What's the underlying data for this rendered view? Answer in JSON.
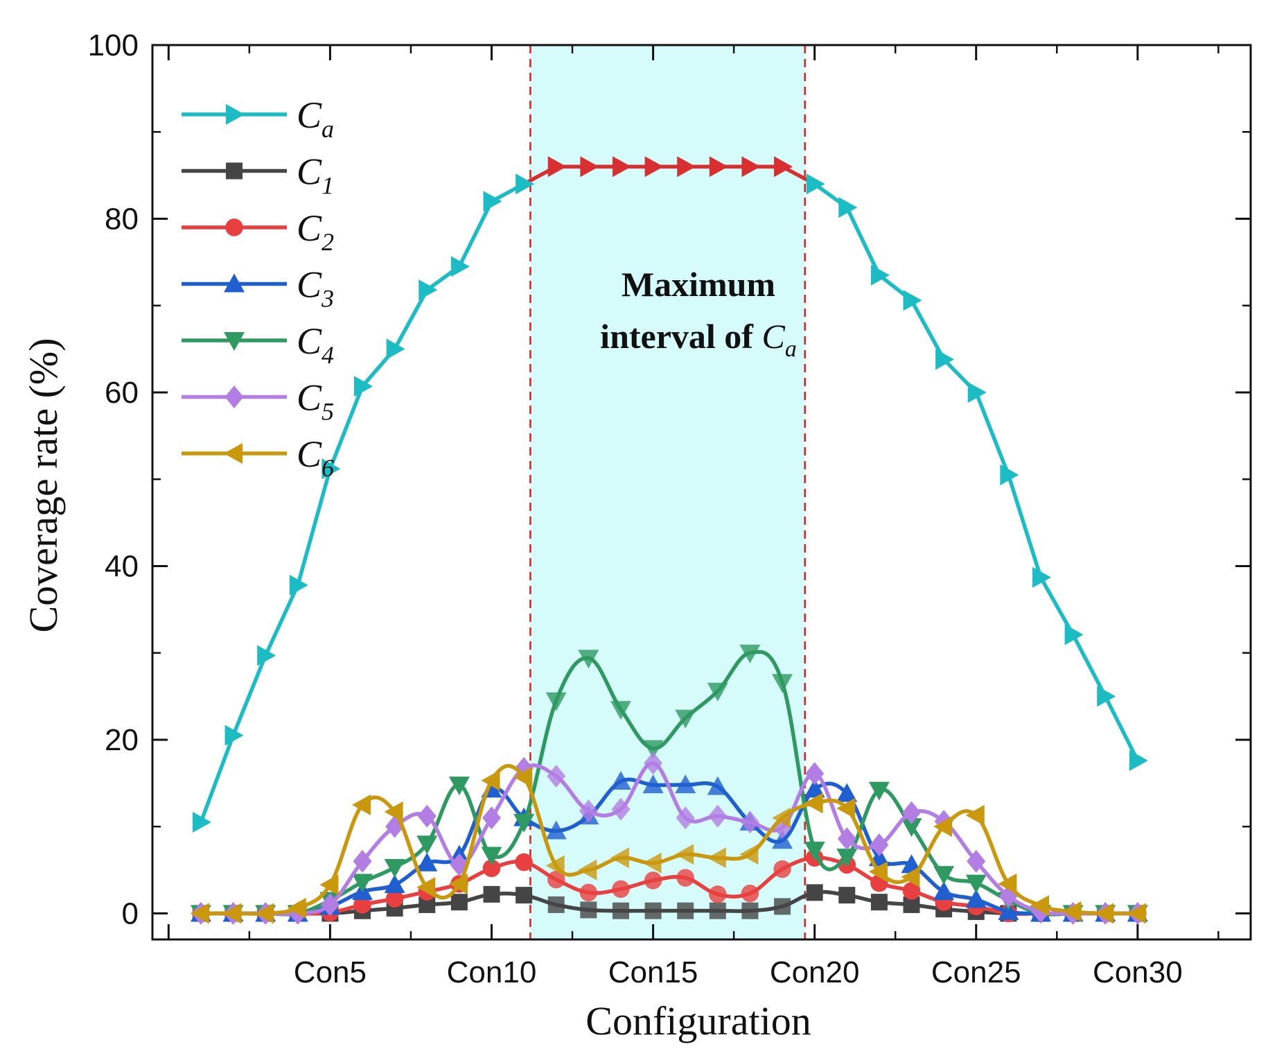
{
  "chart_data": {
    "type": "line",
    "xlabel": "Configuration",
    "ylabel": "Coverage rate (%)",
    "ylim": [
      -3,
      100
    ],
    "yticks": [
      0,
      20,
      40,
      60,
      80,
      100
    ],
    "xlim": [
      -0.5,
      33.5
    ],
    "x_tick_labels": [
      "Con5",
      "Con10",
      "Con15",
      "Con20",
      "Con25",
      "Con30"
    ],
    "x_tick_positions": [
      5,
      10,
      15,
      20,
      25,
      30
    ],
    "x": [
      1,
      2,
      3,
      4,
      5,
      6,
      7,
      8,
      9,
      10,
      11,
      12,
      13,
      14,
      15,
      16,
      17,
      18,
      19,
      20,
      21,
      22,
      23,
      24,
      25,
      26,
      27,
      28,
      29,
      30
    ],
    "highlight": {
      "from": 11.2,
      "to": 19.7,
      "text_line1": "Maximum",
      "text_line2_prefix": "interval of ",
      "text_line2_var": "C",
      "text_line2_sub": "a",
      "fill": "#d6fbfb",
      "line_color": "#d82020",
      "ca_highlight_color": "#d83030"
    },
    "series": [
      {
        "name": "Ca",
        "label": "C",
        "sub": "a",
        "color": "#1cbcc4",
        "marker": "triangle-right",
        "values": [
          10.5,
          20.5,
          29.7,
          37.8,
          51.2,
          60.7,
          65,
          71.8,
          74.5,
          82,
          84,
          86,
          86,
          86,
          86,
          86,
          86,
          86,
          86,
          84,
          81.3,
          73.5,
          70.6,
          63.8,
          60,
          50.5,
          38.7,
          32.1,
          25,
          17.6
        ]
      },
      {
        "name": "C1",
        "label": "C",
        "sub": "1",
        "color": "#454545",
        "marker": "square",
        "values": [
          0,
          0,
          0,
          0,
          0,
          0.3,
          0.6,
          1,
          1.3,
          2.2,
          2.1,
          1,
          0.4,
          0.3,
          0.3,
          0.3,
          0.3,
          0.3,
          0.8,
          2.4,
          2.1,
          1.3,
          1,
          0.5,
          0.2,
          0,
          0,
          0,
          0,
          0
        ]
      },
      {
        "name": "C2",
        "label": "C",
        "sub": "2",
        "color": "#e84040",
        "marker": "circle",
        "values": [
          0,
          0,
          0,
          0,
          0.1,
          1,
          1.7,
          2.5,
          3.4,
          5.2,
          5.9,
          3.9,
          2.4,
          2.8,
          3.8,
          4.1,
          2.2,
          2.3,
          5.1,
          6.4,
          5.6,
          3.5,
          2.6,
          1.3,
          0.8,
          0,
          0,
          0,
          0,
          0
        ]
      },
      {
        "name": "C3",
        "label": "C",
        "sub": "3",
        "color": "#1f5fd0",
        "marker": "triangle-up",
        "values": [
          0,
          0,
          0,
          0,
          0.8,
          2.5,
          3.3,
          5.8,
          6.7,
          14.3,
          11,
          9.5,
          11.2,
          15.2,
          14.8,
          14.8,
          14.6,
          10.5,
          8.4,
          14.3,
          13.8,
          6.4,
          5.6,
          2.5,
          1.6,
          0.2,
          0,
          0,
          0,
          0
        ]
      },
      {
        "name": "C4",
        "label": "C",
        "sub": "4",
        "color": "#2e9a62",
        "marker": "triangle-down",
        "values": [
          0,
          0,
          0,
          0,
          1.5,
          3.6,
          5.3,
          8,
          14.8,
          6.7,
          10.5,
          24.5,
          29.4,
          23.5,
          19,
          22.5,
          25.6,
          30,
          26.6,
          7.3,
          6.5,
          14.2,
          10,
          4.5,
          3.5,
          1.5,
          0,
          0,
          0,
          0
        ]
      },
      {
        "name": "C5",
        "label": "C",
        "sub": "5",
        "color": "#b27ee4",
        "marker": "diamond",
        "values": [
          0,
          0,
          0,
          0,
          1,
          6,
          10,
          11.2,
          5.6,
          11,
          16.7,
          15.8,
          11.8,
          12,
          17.3,
          11,
          11.2,
          10.5,
          9.9,
          16.1,
          8.6,
          7.9,
          11.6,
          10.6,
          6,
          2,
          0.2,
          0,
          0,
          0
        ]
      },
      {
        "name": "C6",
        "label": "C",
        "sub": "6",
        "color": "#c9980c",
        "marker": "triangle-left",
        "values": [
          0,
          0,
          0,
          0.6,
          3.3,
          12.5,
          11.7,
          3,
          3.4,
          15.3,
          15.7,
          5.5,
          5,
          6.4,
          5.8,
          6.8,
          6.4,
          6.8,
          11,
          12.7,
          12.1,
          4.8,
          4.2,
          10,
          11.3,
          3.4,
          0.9,
          0.2,
          0,
          0
        ]
      }
    ]
  }
}
